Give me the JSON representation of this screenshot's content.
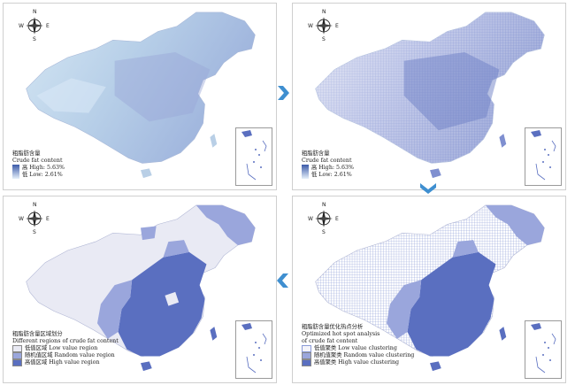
{
  "compass": {
    "n": "N",
    "s": "S",
    "e": "E",
    "w": "W"
  },
  "colors": {
    "base_fill": "#b9cfe6",
    "grid_fill": "#9aa8da",
    "low_region": "#e9eaf4",
    "random_region": "#9aa6dc",
    "high_region": "#5a6fc0",
    "arrow": "#3f8fd0"
  },
  "panels": {
    "p1": {
      "legend_title_cn": "粗脂肪含量",
      "legend_title_en": "Crude fat content",
      "high": "高 High: 5.63%",
      "low": "低 Low: 2.61%"
    },
    "p2": {
      "legend_title_cn": "粗脂肪含量",
      "legend_title_en": "Crude fat content",
      "high": "高 High: 5.63%",
      "low": "低 Low: 2.61%"
    },
    "p3": {
      "legend_title_cn": "粗脂肪含量区域划分",
      "legend_title_en": "Different regions of crude fat content",
      "items": [
        "低值区域 Low value region",
        "随机值区域 Random value region",
        "高值区域 High value region"
      ]
    },
    "p4": {
      "legend_title_cn": "粗脂肪含量优化热点分析",
      "legend_title_en1": "Optimized hot spot analysis",
      "legend_title_en2": "of crude fat content",
      "items": [
        "低值聚类 Low value clustering",
        "随机值聚类 Random value clustering",
        "高值聚类 High value clustering"
      ]
    }
  },
  "icons": [
    "compass-rose-icon",
    "right-arrow-icon",
    "down-arrow-icon",
    "left-arrow-icon"
  ]
}
